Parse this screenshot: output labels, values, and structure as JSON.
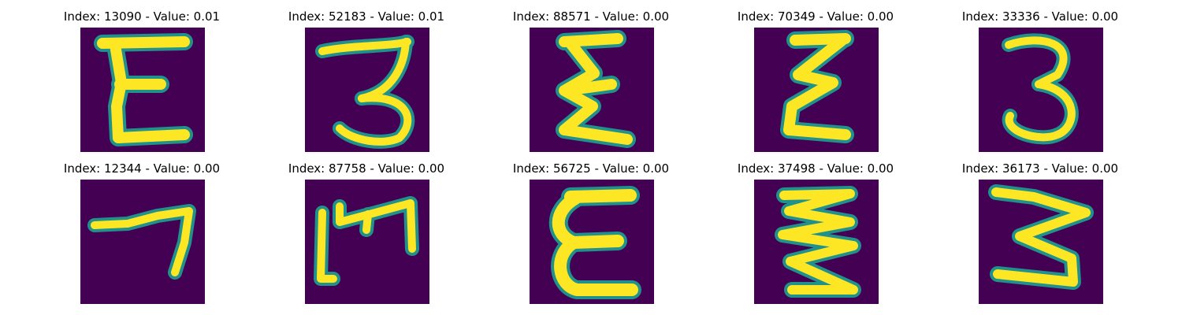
{
  "colors": {
    "background": "#440154",
    "mid": "#21918c",
    "stroke": "#fde725"
  },
  "panels": [
    {
      "title": "Index: 13090 - Value: 0.01",
      "digit_shape": "E"
    },
    {
      "title": "Index: 52183 - Value: 0.01",
      "digit_shape": "3"
    },
    {
      "title": "Index: 88571 - Value: 0.00",
      "digit_shape": "E"
    },
    {
      "title": "Index: 70349 - Value: 0.00",
      "digit_shape": "E"
    },
    {
      "title": "Index: 33336 - Value: 0.00",
      "digit_shape": "3"
    },
    {
      "title": "Index: 12344 - Value: 0.00",
      "digit_shape": "7"
    },
    {
      "title": "Index: 87758 - Value: 0.00",
      "digit_shape": "M"
    },
    {
      "title": "Index: 56725 - Value: 0.00",
      "digit_shape": "E"
    },
    {
      "title": "Index: 37498 - Value: 0.00",
      "digit_shape": "Z"
    },
    {
      "title": "Index: 36173 - Value: 0.00",
      "digit_shape": "3"
    }
  ]
}
